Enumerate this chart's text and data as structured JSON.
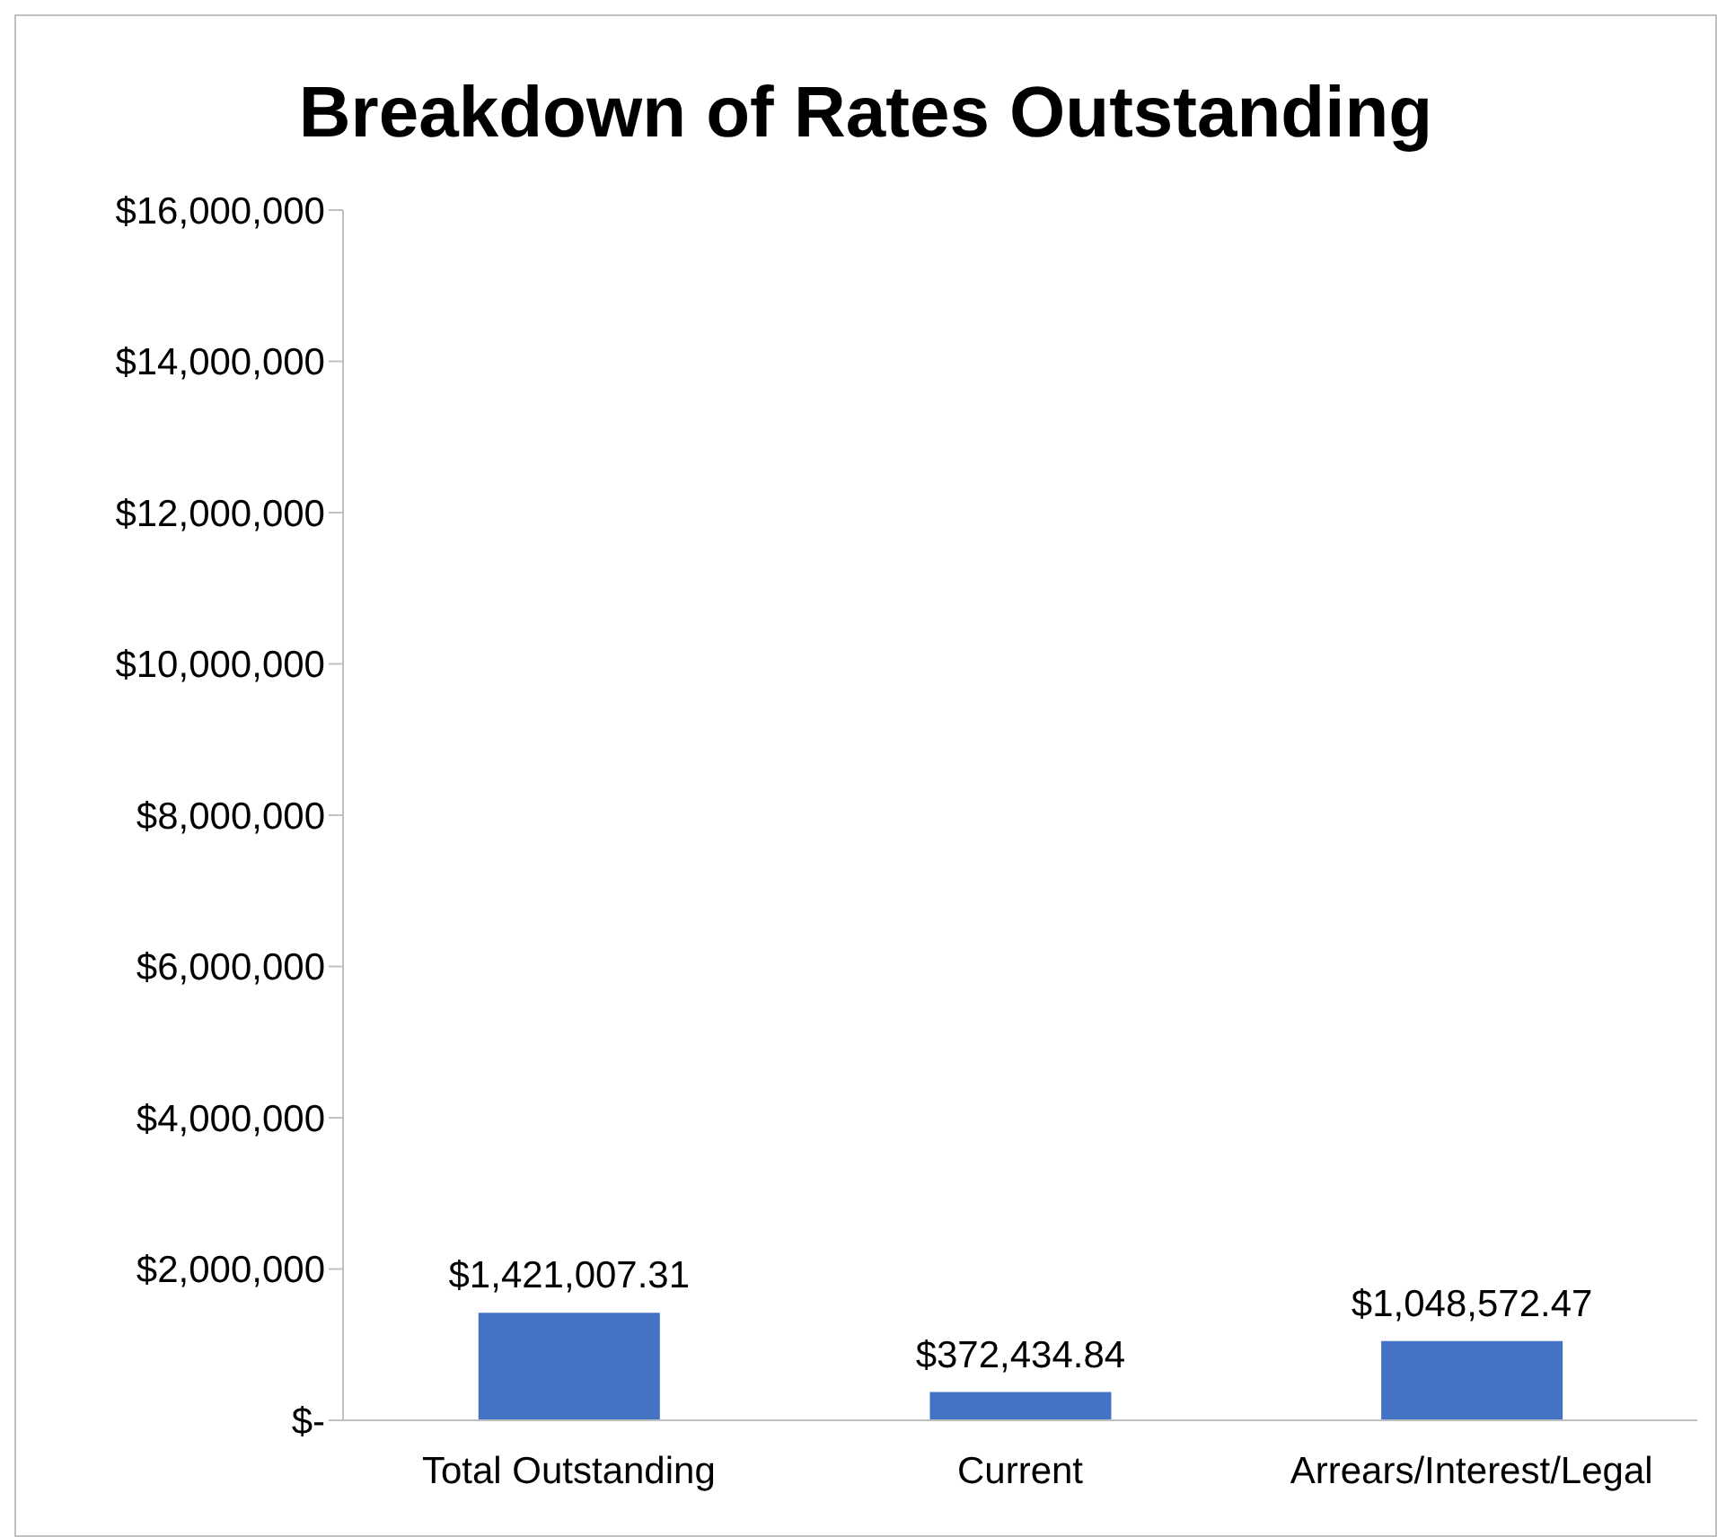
{
  "chart_data": {
    "type": "bar",
    "title": "Breakdown of Rates Outstanding",
    "categories": [
      "Total Outstanding",
      "Current",
      "Arrears/Interest/Legal"
    ],
    "values": [
      1421007.31,
      372434.84,
      1048572.47
    ],
    "value_labels": [
      "$1,421,007.31",
      "$372,434.84",
      "$1,048,572.47"
    ],
    "color": "#4472c4",
    "ylim": [
      0,
      16000000
    ],
    "yticks": [
      {
        "value": 0,
        "label": "$-"
      },
      {
        "value": 2000000,
        "label": "$2,000,000"
      },
      {
        "value": 4000000,
        "label": "$4,000,000"
      },
      {
        "value": 6000000,
        "label": "$6,000,000"
      },
      {
        "value": 8000000,
        "label": "$8,000,000"
      },
      {
        "value": 10000000,
        "label": "$10,000,000"
      },
      {
        "value": 12000000,
        "label": "$12,000,000"
      },
      {
        "value": 14000000,
        "label": "$14,000,000"
      },
      {
        "value": 16000000,
        "label": "$16,000,000"
      }
    ],
    "grid": false,
    "legend": false
  }
}
